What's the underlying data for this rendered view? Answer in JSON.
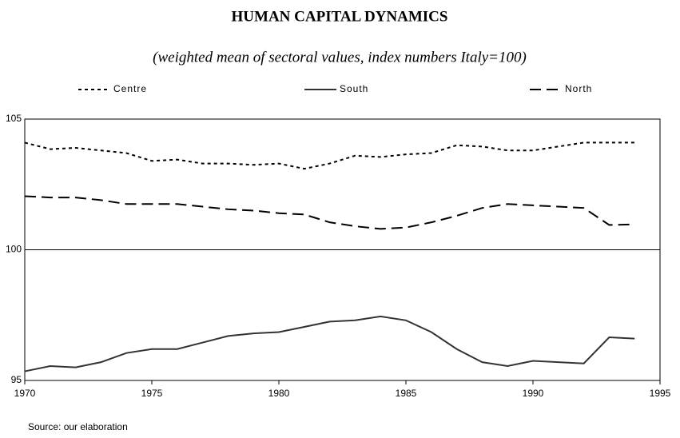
{
  "chart_data": {
    "type": "line",
    "title": "HUMAN CAPITAL DYNAMICS",
    "subtitle": "(weighted mean of sectoral values, index numbers Italy=100)",
    "source": "Source:  our elaboration",
    "x": [
      1970,
      1971,
      1972,
      1973,
      1974,
      1975,
      1976,
      1977,
      1978,
      1979,
      1980,
      1981,
      1982,
      1983,
      1984,
      1985,
      1986,
      1987,
      1988,
      1989,
      1990,
      1991,
      1992,
      1993,
      1994
    ],
    "xlim": [
      1970,
      1995
    ],
    "xticks": [
      1970,
      1975,
      1980,
      1985,
      1990,
      1995
    ],
    "ylim": [
      95,
      105
    ],
    "yticks": [
      95,
      100,
      105
    ],
    "grid": true,
    "series": [
      {
        "name": "Centre",
        "color": "#000000",
        "dash": "4,4",
        "values": [
          104.1,
          103.85,
          103.9,
          103.8,
          103.7,
          103.4,
          103.45,
          103.3,
          103.3,
          103.25,
          103.3,
          103.1,
          103.3,
          103.6,
          103.55,
          103.65,
          103.7,
          104.0,
          103.95,
          103.8,
          103.8,
          103.95,
          104.1,
          104.1,
          104.1
        ]
      },
      {
        "name": "South",
        "color": "#333333",
        "dash": "none",
        "values": [
          95.35,
          95.55,
          95.5,
          95.7,
          96.05,
          96.2,
          96.2,
          96.45,
          96.7,
          96.8,
          96.85,
          97.05,
          97.25,
          97.3,
          97.45,
          97.3,
          96.85,
          96.2,
          95.7,
          95.55,
          95.75,
          95.7,
          95.65,
          96.65,
          96.6
        ]
      },
      {
        "name": "North",
        "color": "#000000",
        "dash": "14,7",
        "values": [
          102.05,
          102.0,
          102.0,
          101.9,
          101.75,
          101.75,
          101.75,
          101.65,
          101.55,
          101.5,
          101.4,
          101.35,
          101.05,
          100.9,
          100.8,
          100.85,
          101.05,
          101.3,
          101.6,
          101.75,
          101.7,
          101.65,
          101.6,
          100.95,
          100.97
        ]
      }
    ]
  }
}
